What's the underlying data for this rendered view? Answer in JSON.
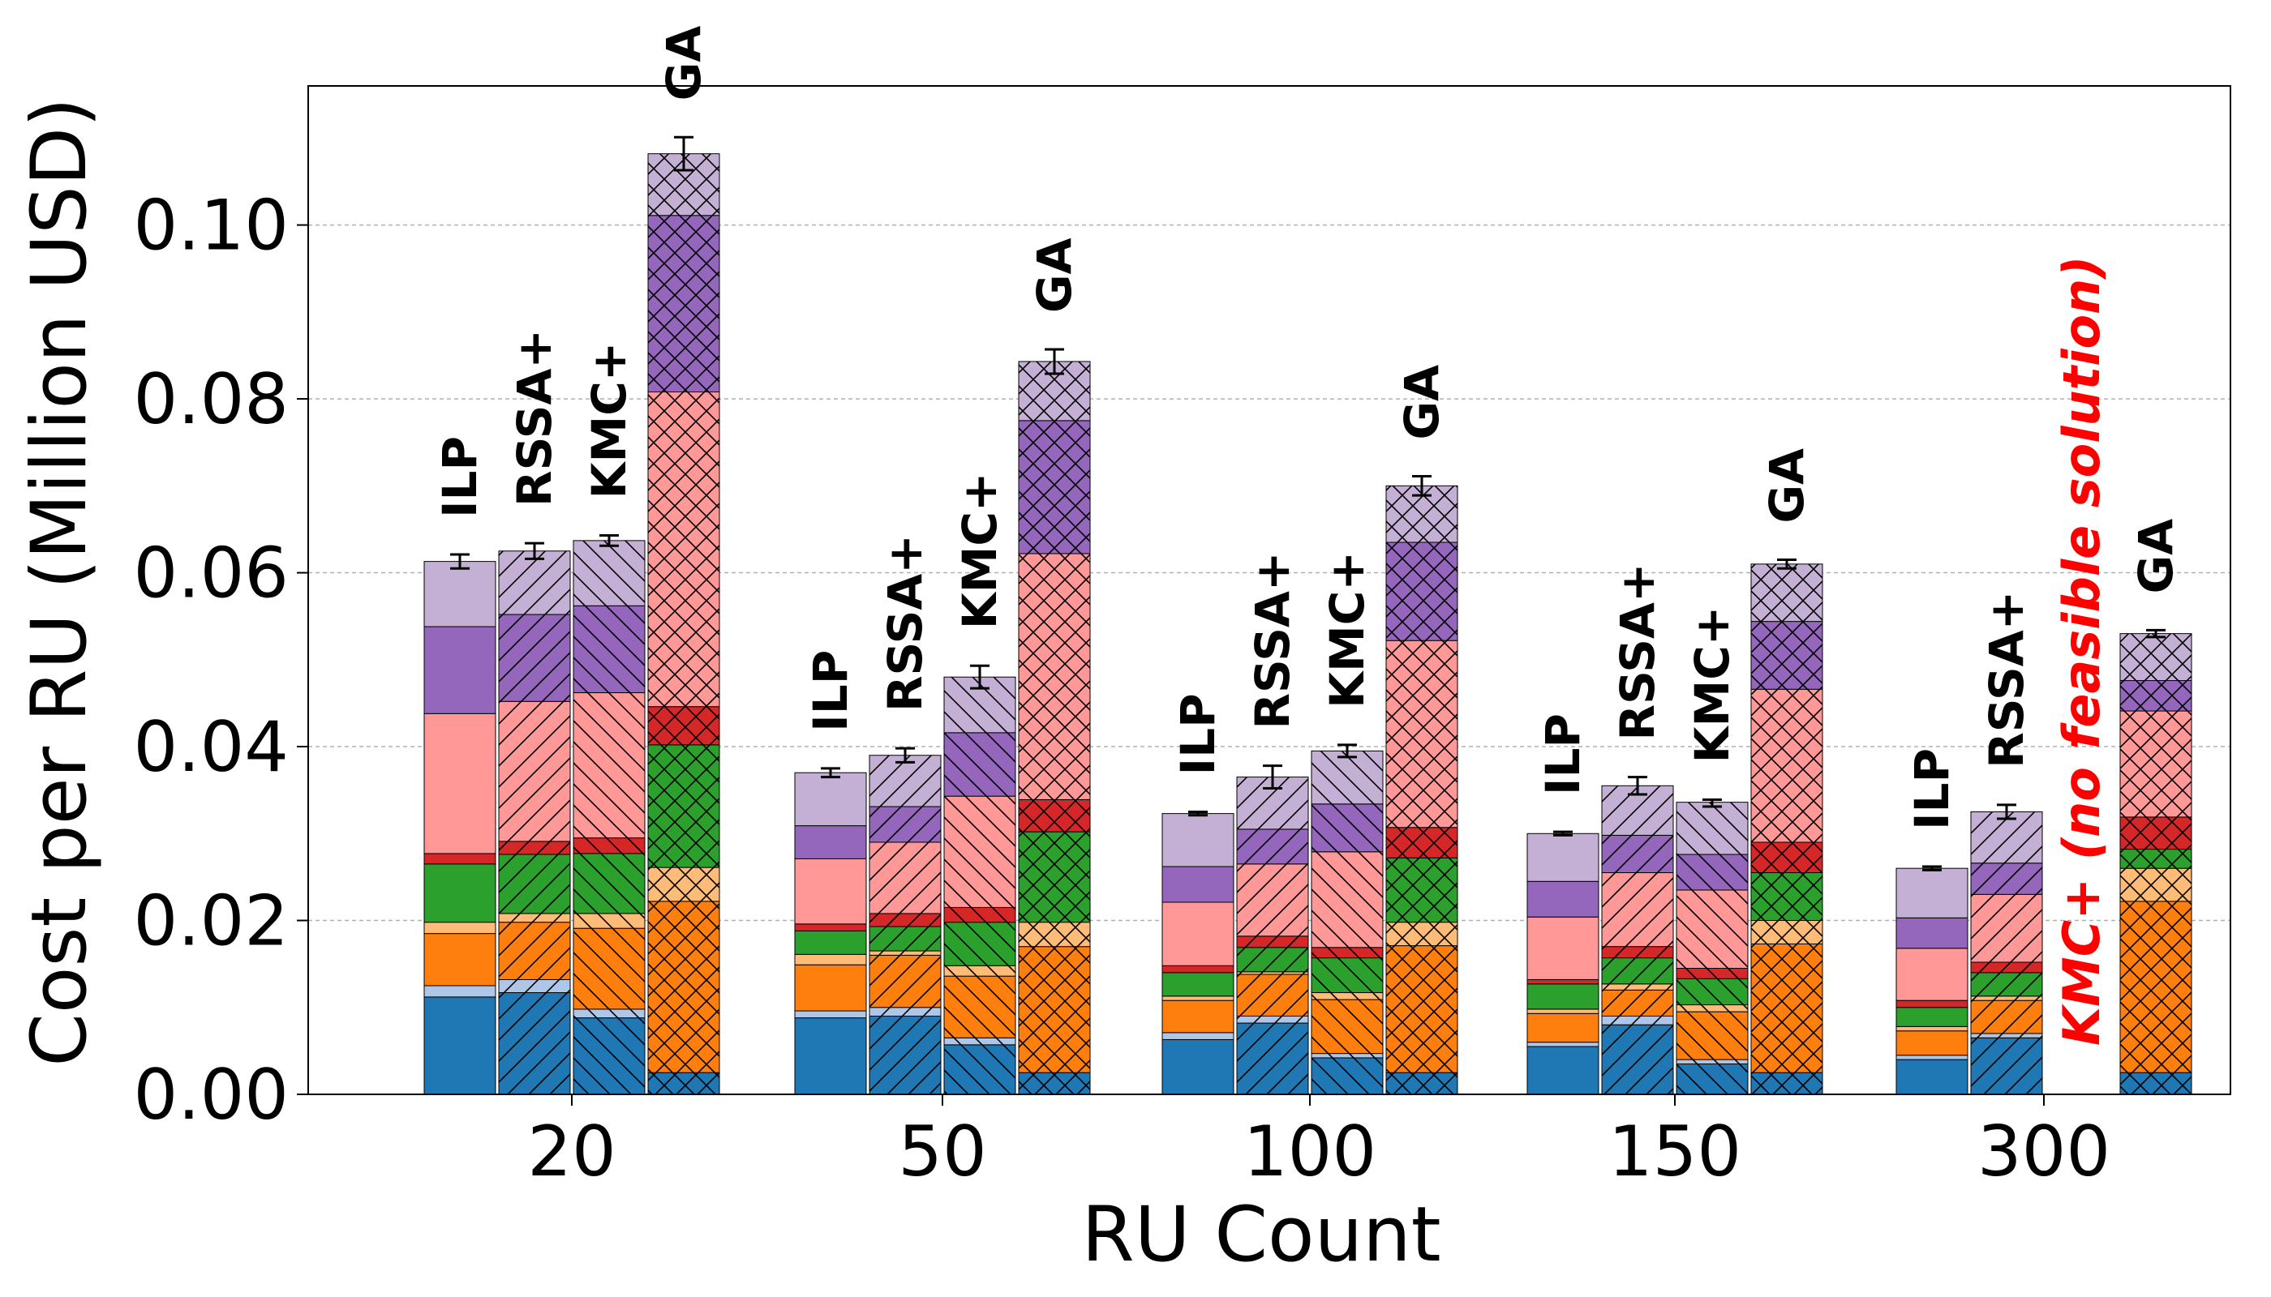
{
  "chart_data": {
    "type": "bar",
    "stacked": true,
    "title": "",
    "xlabel": "RU Count",
    "ylabel": "Cost per RU (Million USD)",
    "ylim": [
      0,
      0.116
    ],
    "yticks": [
      0.0,
      0.02,
      0.04,
      0.06,
      0.08,
      0.1
    ],
    "ytick_labels": [
      "0.00",
      "0.02",
      "0.04",
      "0.06",
      "0.08",
      "0.10"
    ],
    "grid": "y-dashed",
    "categories": [
      "20",
      "50",
      "100",
      "150",
      "300"
    ],
    "methods": [
      {
        "name": "ILP",
        "hatch": "none"
      },
      {
        "name": "RSSA+",
        "hatch": "forward"
      },
      {
        "name": "KMC+",
        "hatch": "back"
      },
      {
        "name": "GA",
        "hatch": "cross"
      }
    ],
    "component_colors": [
      "#1f77b4",
      "#aec7e8",
      "#ff7f0e",
      "#ffbb78",
      "#2ca02c",
      "#d62728",
      "#ff9896",
      "#9467bd",
      "#c5b0d5"
    ],
    "stacks": [
      [
        {
          "method": "ILP",
          "segments": [
            0.0112,
            0.0013,
            0.006,
            0.0013,
            0.0067,
            0.0012,
            0.0161,
            0.01,
            0.0075
          ],
          "total": 0.0613,
          "err": 0.0008
        },
        {
          "method": "RSSA+",
          "segments": [
            0.0117,
            0.0015,
            0.0066,
            0.001,
            0.0068,
            0.0015,
            0.0161,
            0.01,
            0.0073
          ],
          "total": 0.0625,
          "err": 0.0009
        },
        {
          "method": "KMC+",
          "segments": [
            0.0088,
            0.001,
            0.0093,
            0.0017,
            0.0069,
            0.0018,
            0.0167,
            0.01,
            0.0075
          ],
          "total": 0.0637,
          "err": 0.0006
        },
        {
          "method": "GA",
          "segments": [
            0.0025,
            0.0,
            0.0197,
            0.0039,
            0.0141,
            0.0044,
            0.0362,
            0.0203,
            0.0071
          ],
          "total": 0.1082,
          "err": 0.0019
        }
      ],
      [
        {
          "method": "ILP",
          "segments": [
            0.0088,
            0.0008,
            0.0053,
            0.0012,
            0.0027,
            0.0008,
            0.0075,
            0.0038,
            0.0061
          ],
          "total": 0.037,
          "err": 0.0005
        },
        {
          "method": "RSSA+",
          "segments": [
            0.009,
            0.001,
            0.006,
            0.0005,
            0.0028,
            0.0015,
            0.0082,
            0.0041,
            0.0059
          ],
          "total": 0.039,
          "err": 0.0008
        },
        {
          "method": "KMC+",
          "segments": [
            0.0057,
            0.0008,
            0.0071,
            0.0012,
            0.005,
            0.0017,
            0.0128,
            0.0073,
            0.0064
          ],
          "total": 0.048,
          "err": 0.0013
        },
        {
          "method": "GA",
          "segments": [
            0.0025,
            0.0,
            0.0145,
            0.0028,
            0.0104,
            0.0037,
            0.0283,
            0.0153,
            0.0068
          ],
          "total": 0.0843,
          "err": 0.0014
        }
      ],
      [
        {
          "method": "ILP",
          "segments": [
            0.0063,
            0.0008,
            0.0037,
            0.0005,
            0.0027,
            0.0008,
            0.0073,
            0.0041,
            0.0061
          ],
          "total": 0.0323,
          "err": 0.0002
        },
        {
          "method": "RSSA+",
          "segments": [
            0.0082,
            0.0008,
            0.0048,
            0.0003,
            0.0028,
            0.0013,
            0.0083,
            0.004,
            0.006
          ],
          "total": 0.0365,
          "err": 0.0013
        },
        {
          "method": "KMC+",
          "segments": [
            0.0042,
            0.0005,
            0.0062,
            0.0008,
            0.004,
            0.0012,
            0.011,
            0.0055,
            0.0061
          ],
          "total": 0.0395,
          "err": 0.0007
        },
        {
          "method": "GA",
          "segments": [
            0.0025,
            0.0,
            0.0146,
            0.0027,
            0.0074,
            0.0035,
            0.0215,
            0.0113,
            0.0065
          ],
          "total": 0.07,
          "err": 0.0011
        }
      ],
      [
        {
          "method": "ILP",
          "segments": [
            0.0055,
            0.0005,
            0.0033,
            0.0005,
            0.0029,
            0.0005,
            0.0072,
            0.0041,
            0.0055
          ],
          "total": 0.03,
          "err": 0.0002
        },
        {
          "method": "RSSA+",
          "segments": [
            0.008,
            0.001,
            0.003,
            0.0007,
            0.003,
            0.0013,
            0.0085,
            0.0043,
            0.0057
          ],
          "total": 0.0355,
          "err": 0.001
        },
        {
          "method": "KMC+",
          "segments": [
            0.0035,
            0.0005,
            0.0055,
            0.0008,
            0.003,
            0.0012,
            0.009,
            0.0041,
            0.006
          ],
          "total": 0.0335,
          "err": 0.0004
        },
        {
          "method": "GA",
          "segments": [
            0.0025,
            0.0,
            0.0148,
            0.0027,
            0.0055,
            0.0035,
            0.0176,
            0.0078,
            0.0066
          ],
          "total": 0.061,
          "err": 0.0005
        }
      ],
      [
        {
          "method": "ILP",
          "segments": [
            0.004,
            0.0005,
            0.0028,
            0.0005,
            0.0022,
            0.0008,
            0.006,
            0.0035,
            0.0057
          ],
          "total": 0.026,
          "err": 0.0002
        },
        {
          "method": "RSSA+",
          "segments": [
            0.0065,
            0.0005,
            0.0038,
            0.0005,
            0.0027,
            0.0012,
            0.0078,
            0.0036,
            0.0059
          ],
          "total": 0.0325,
          "err": 0.0008
        },
        {
          "method": "KMC+",
          "segments": [],
          "total": null,
          "err": null
        },
        {
          "method": "GA",
          "segments": [
            0.0025,
            0.0,
            0.0197,
            0.0038,
            0.0022,
            0.0037,
            0.0122,
            0.0035,
            0.0054
          ],
          "total": 0.053,
          "err": 0.0004
        }
      ]
    ],
    "annotations": [
      {
        "category": "300",
        "method": "KMC+",
        "text": "KMC+ (no feasible solution)",
        "color": "#ff0000"
      }
    ]
  }
}
